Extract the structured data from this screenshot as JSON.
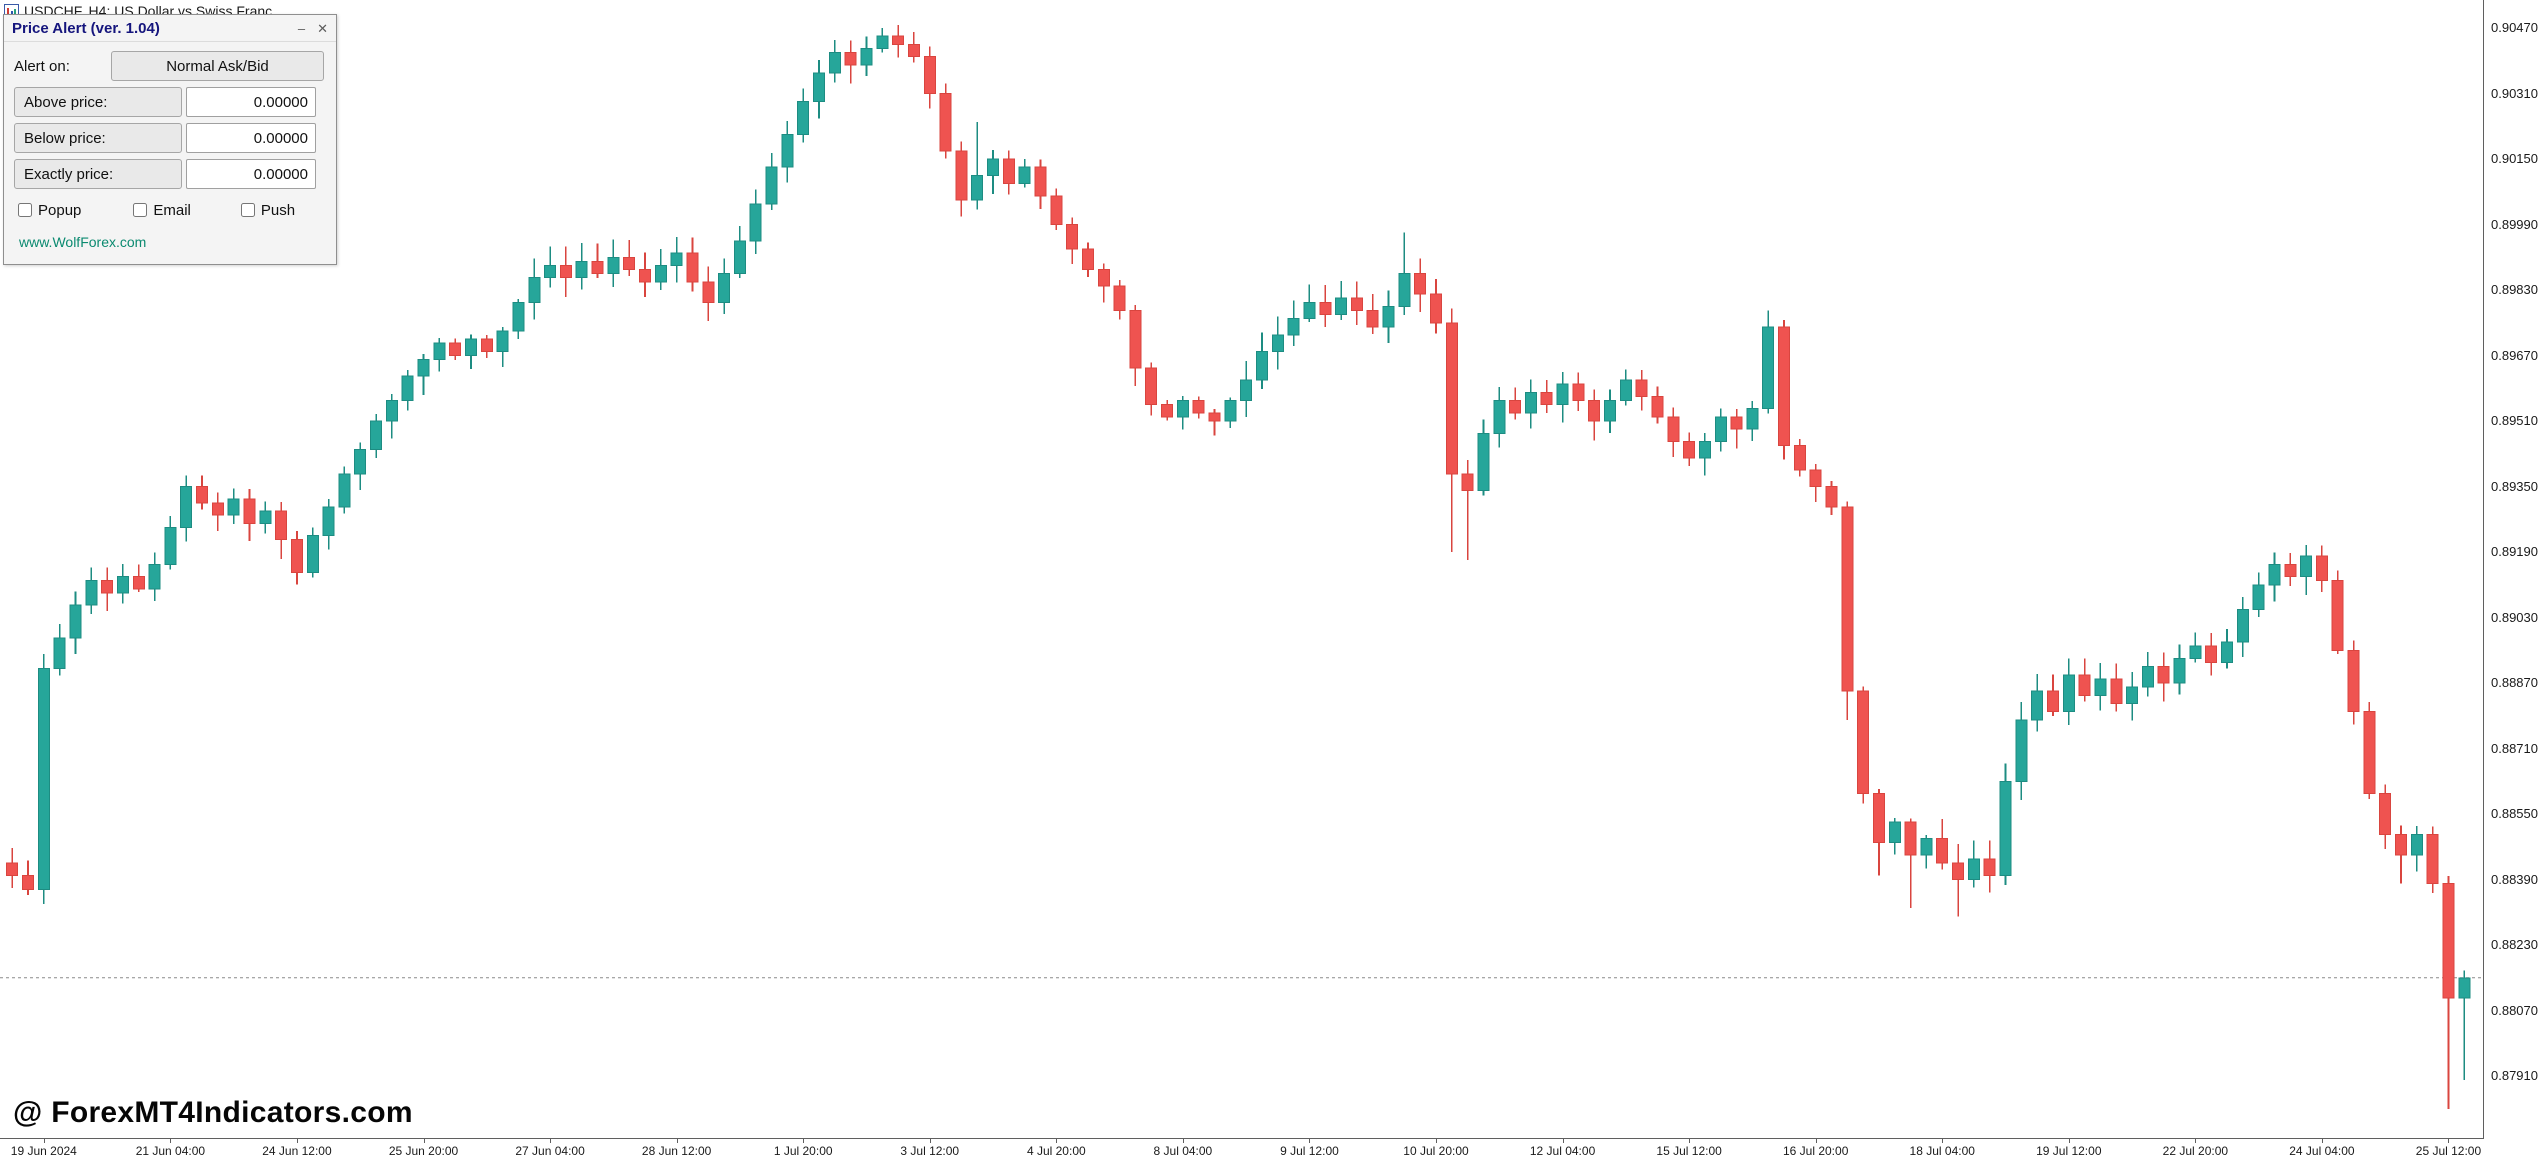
{
  "chart_header": {
    "symbol_title": "USDCHF, H4: US Dollar vs Swiss Franc"
  },
  "price_alert_panel": {
    "title": "Price Alert (ver. 1.04)",
    "minimize_glyph": "–",
    "close_glyph": "✕",
    "alert_on": {
      "label": "Alert on:",
      "value": "Normal Ask/Bid"
    },
    "price_rows": [
      {
        "label": "Above price:",
        "value": "0.00000"
      },
      {
        "label": "Below price:",
        "value": "0.00000"
      },
      {
        "label": "Exactly price:",
        "value": "0.00000"
      }
    ],
    "checkboxes": [
      {
        "label": "Popup",
        "checked": false
      },
      {
        "label": "Email",
        "checked": false
      },
      {
        "label": "Push",
        "checked": false
      }
    ],
    "link": "www.WolfForex.com"
  },
  "watermark": "@ ForexMT4Indicators.com",
  "chart_data": {
    "type": "candlestick",
    "symbol": "USDCHF",
    "timeframe": "H4",
    "up_color": "#26a69a",
    "down_color": "#ef5350",
    "up_border": "#1d8c82",
    "down_border": "#d9453f",
    "current_price_line_color": "#8a8a8a",
    "price_top": 0.9047,
    "price_step": 0.0016,
    "price_ticks": [
      "0.90470",
      "0.90310",
      "0.90150",
      "0.89990",
      "0.89830",
      "0.89670",
      "0.89510",
      "0.89350",
      "0.89190",
      "0.89030",
      "0.88870",
      "0.88710",
      "0.88550",
      "0.88390",
      "0.88230",
      "0.88070",
      "0.87910"
    ],
    "time_labels": [
      {
        "index": 2,
        "text": "19 Jun 2024"
      },
      {
        "index": 10,
        "text": "21 Jun 04:00"
      },
      {
        "index": 18,
        "text": "24 Jun 12:00"
      },
      {
        "index": 26,
        "text": "25 Jun 20:00"
      },
      {
        "index": 34,
        "text": "27 Jun 04:00"
      },
      {
        "index": 42,
        "text": "28 Jun 12:00"
      },
      {
        "index": 50,
        "text": "1 Jul 20:00"
      },
      {
        "index": 58,
        "text": "3 Jul 12:00"
      },
      {
        "index": 66,
        "text": "4 Jul 20:00"
      },
      {
        "index": 74,
        "text": "8 Jul 04:00"
      },
      {
        "index": 82,
        "text": "9 Jul 12:00"
      },
      {
        "index": 90,
        "text": "10 Jul 20:00"
      },
      {
        "index": 98,
        "text": "12 Jul 04:00"
      },
      {
        "index": 106,
        "text": "15 Jul 12:00"
      },
      {
        "index": 114,
        "text": "16 Jul 20:00"
      },
      {
        "index": 122,
        "text": "18 Jul 04:00"
      },
      {
        "index": 130,
        "text": "19 Jul 12:00"
      },
      {
        "index": 138,
        "text": "22 Jul 20:00"
      },
      {
        "index": 146,
        "text": "24 Jul 04:00"
      },
      {
        "index": 154,
        "text": "25 Jul 12:00"
      }
    ],
    "first_open": 0.8843,
    "closes": [
      0.884,
      0.88365,
      0.88905,
      0.8898,
      0.8906,
      0.8912,
      0.8909,
      0.8913,
      0.891,
      0.8916,
      0.8925,
      0.8935,
      0.8931,
      0.8928,
      0.8932,
      0.8926,
      0.8929,
      0.8922,
      0.8914,
      0.8923,
      0.893,
      0.8938,
      0.8944,
      0.8951,
      0.8956,
      0.8962,
      0.8966,
      0.897,
      0.8967,
      0.8971,
      0.8968,
      0.8973,
      0.898,
      0.8986,
      0.8989,
      0.8986,
      0.899,
      0.8987,
      0.8991,
      0.8988,
      0.8985,
      0.8989,
      0.8992,
      0.8985,
      0.898,
      0.8987,
      0.8995,
      0.9004,
      0.9013,
      0.9021,
      0.9029,
      0.9036,
      0.9041,
      0.9038,
      0.9042,
      0.9045,
      0.9043,
      0.904,
      0.9031,
      0.9017,
      0.9005,
      0.9011,
      0.9015,
      0.9009,
      0.9013,
      0.9006,
      0.8999,
      0.8993,
      0.8988,
      0.8984,
      0.8978,
      0.8964,
      0.8955,
      0.8952,
      0.8956,
      0.8953,
      0.8951,
      0.8956,
      0.8961,
      0.8968,
      0.8972,
      0.8976,
      0.898,
      0.8977,
      0.8981,
      0.8978,
      0.8974,
      0.8979,
      0.8987,
      0.8982,
      0.8975,
      0.8938,
      0.8934,
      0.8948,
      0.8956,
      0.8953,
      0.8958,
      0.8955,
      0.896,
      0.8956,
      0.8951,
      0.8956,
      0.8961,
      0.8957,
      0.8952,
      0.8946,
      0.8942,
      0.8946,
      0.8952,
      0.8949,
      0.8954,
      0.8974,
      0.8945,
      0.8939,
      0.8935,
      0.893,
      0.8885,
      0.886,
      0.8848,
      0.8853,
      0.8845,
      0.8849,
      0.8843,
      0.8839,
      0.8844,
      0.884,
      0.8863,
      0.8878,
      0.8885,
      0.888,
      0.8889,
      0.8884,
      0.8888,
      0.8882,
      0.8886,
      0.8891,
      0.8887,
      0.8893,
      0.8896,
      0.8892,
      0.8897,
      0.8905,
      0.8911,
      0.8916,
      0.8913,
      0.8918,
      0.8912,
      0.8895,
      0.888,
      0.886,
      0.885,
      0.8845,
      0.885,
      0.8838,
      0.881,
      0.8815
    ],
    "wick_overrides": {
      "2": {
        "low": 0.8833
      },
      "55": {
        "high": 0.9047
      },
      "57": {
        "high": 0.9046
      },
      "61": {
        "high": 0.9024
      },
      "88": {
        "high": 0.8997
      },
      "91": {
        "low": 0.8919
      },
      "92": {
        "low": 0.8917
      },
      "111": {
        "high": 0.8978
      },
      "116": {
        "low": 0.8878
      },
      "118": {
        "low": 0.884
      },
      "120": {
        "low": 0.8832
      },
      "123": {
        "low": 0.883
      },
      "151": {
        "low": 0.8838
      },
      "154": {
        "low": 0.8783
      },
      "155": {
        "low": 0.879
      }
    },
    "current_price": 0.8815
  }
}
